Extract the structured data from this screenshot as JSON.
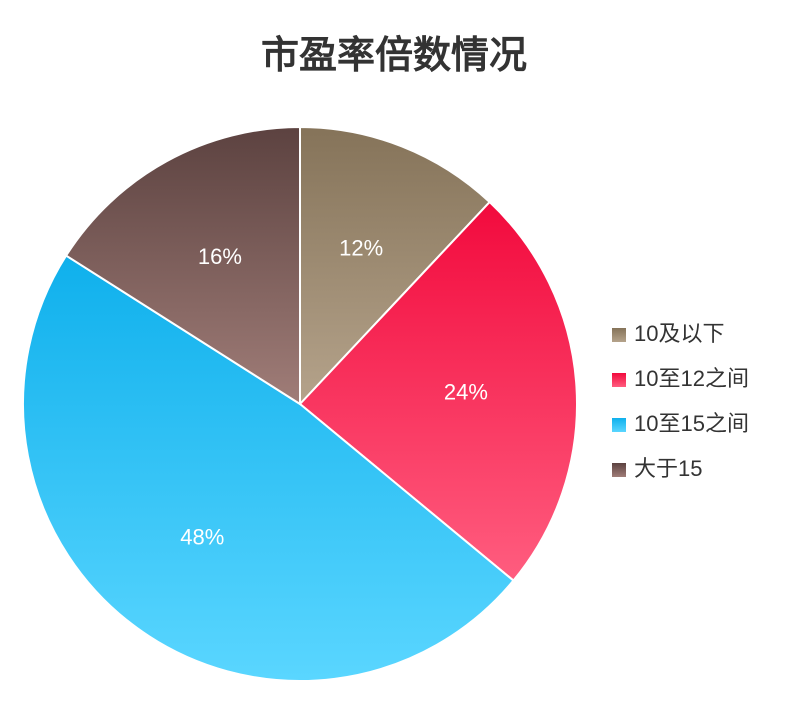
{
  "chart_data": {
    "type": "pie",
    "title": "市盈率倍数情况",
    "categories": [
      "10及以下",
      "10至12之间",
      "10至15之间",
      "大于15"
    ],
    "values": [
      12,
      24,
      48,
      16
    ],
    "value_labels": [
      "12%",
      "24%",
      "48%",
      "16%"
    ],
    "colors": [
      [
        "#857359",
        "#b5a38b"
      ],
      [
        "#f20a3d",
        "#ff5d7f"
      ],
      [
        "#0fb0ec",
        "#5ad6ff"
      ],
      [
        "#5c4240",
        "#a07d78"
      ]
    ],
    "legend": "right"
  }
}
